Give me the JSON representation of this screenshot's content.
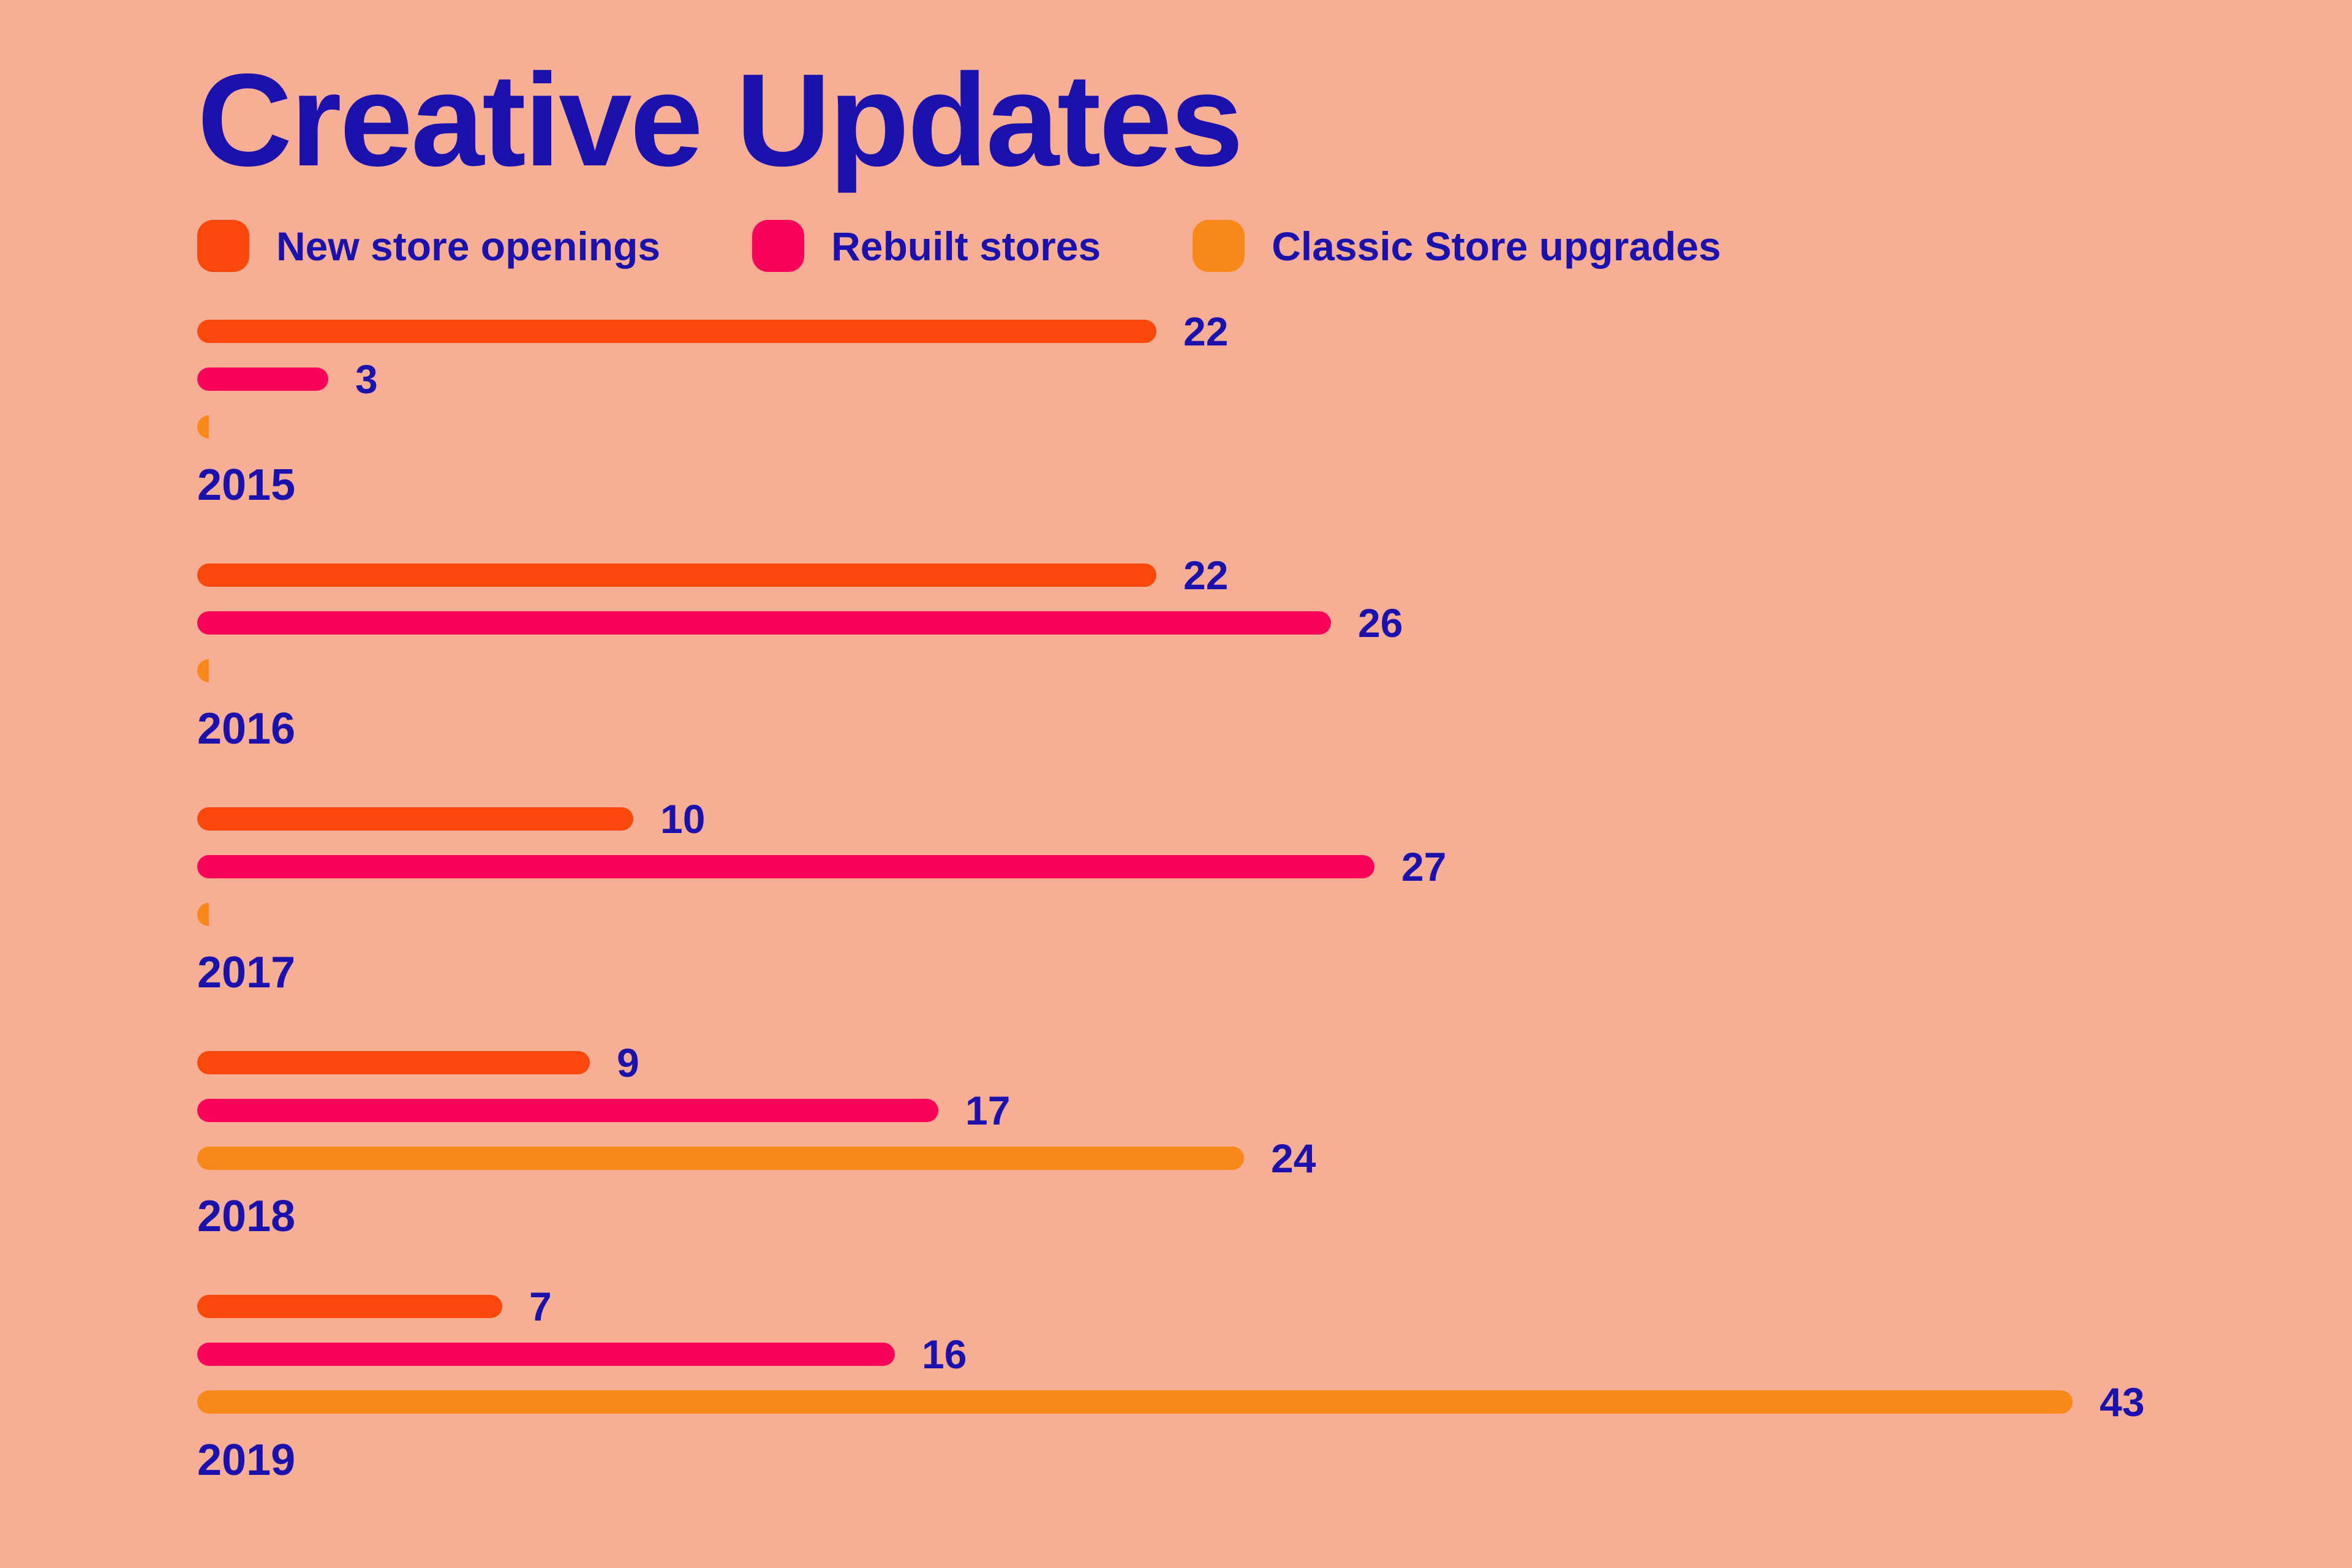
{
  "title": "Creative Updates",
  "colors": {
    "background": "#F8AE94",
    "text": "#1B12AE",
    "new_store_openings": "#FA470B",
    "rebuilt_stores": "#FB025A",
    "classic_store_upgrades": "#F88819"
  },
  "legend": [
    {
      "label": "New store openings",
      "color": "#FA470B"
    },
    {
      "label": "Rebuilt stores",
      "color": "#FB025A"
    },
    {
      "label": "Classic Store upgrades",
      "color": "#F88819"
    }
  ],
  "chart_data": {
    "type": "bar",
    "orientation": "horizontal",
    "title": "Creative Updates",
    "categories": [
      "2015",
      "2016",
      "2017",
      "2018",
      "2019"
    ],
    "series": [
      {
        "name": "New store openings",
        "color": "#FA470B",
        "values": [
          22,
          22,
          10,
          9,
          7
        ]
      },
      {
        "name": "Rebuilt stores",
        "color": "#FB025A",
        "values": [
          3,
          26,
          27,
          17,
          16
        ]
      },
      {
        "name": "Classic Store upgrades",
        "color": "#F88819",
        "values": [
          0,
          0,
          0,
          24,
          43
        ]
      }
    ],
    "value_labels": [
      [
        "22",
        "22",
        "10",
        "9",
        "7"
      ],
      [
        "3",
        "26",
        "27",
        "17",
        "16"
      ],
      [
        "",
        "",
        "",
        "24",
        "43"
      ]
    ],
    "xlim": [
      0,
      43
    ],
    "grid": false,
    "axes_shown": false,
    "legend_position": "top"
  }
}
